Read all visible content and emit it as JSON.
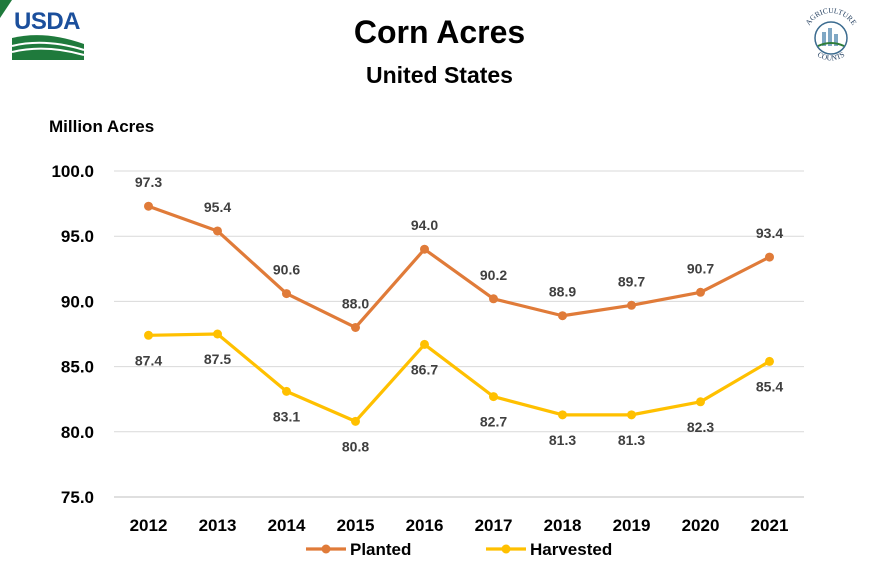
{
  "header": {
    "usda_logo_text": "USDA",
    "ag_counts_logo_text_top": "AGRICULTURE",
    "ag_counts_logo_text_bottom": "COUNTS"
  },
  "chart_data": {
    "type": "line",
    "title": "Corn Acres",
    "subtitle": "United States",
    "ylabel": "Million Acres",
    "xlabel": "",
    "categories": [
      "2012",
      "2013",
      "2014",
      "2015",
      "2016",
      "2017",
      "2018",
      "2019",
      "2020",
      "2021"
    ],
    "ylim": [
      75.0,
      100.0
    ],
    "yticks": [
      "75.0",
      "80.0",
      "85.0",
      "90.0",
      "95.0",
      "100.0"
    ],
    "grid": true,
    "legend_position": "bottom",
    "series": [
      {
        "name": "Planted",
        "color": "#E07B39",
        "values": [
          97.3,
          95.4,
          90.6,
          88.0,
          94.0,
          90.2,
          88.9,
          89.7,
          90.7,
          93.4
        ],
        "labels": [
          "97.3",
          "95.4",
          "90.6",
          "88.0",
          "94.0",
          "90.2",
          "88.9",
          "89.7",
          "90.7",
          "93.4"
        ]
      },
      {
        "name": "Harvested",
        "color": "#FFC000",
        "values": [
          87.4,
          87.5,
          83.1,
          80.8,
          86.7,
          82.7,
          81.3,
          81.3,
          82.3,
          85.4
        ],
        "labels": [
          "87.4",
          "87.5",
          "83.1",
          "80.8",
          "86.7",
          "82.7",
          "81.3",
          "81.3",
          "82.3",
          "85.4"
        ]
      }
    ]
  }
}
